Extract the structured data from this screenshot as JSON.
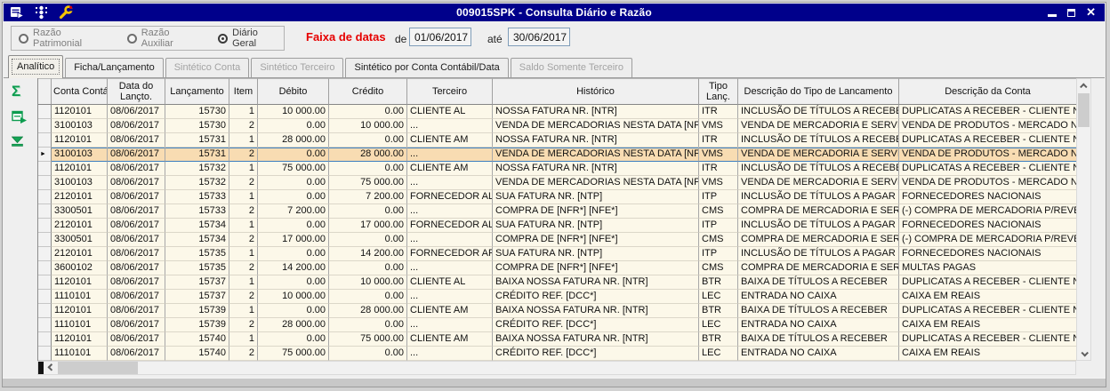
{
  "window": {
    "title": "009015SPK - Consulta Diário e Razão"
  },
  "filters": {
    "radios": [
      {
        "label": "Razão Patrimonial",
        "selected": false,
        "enabled": false
      },
      {
        "label": "Razão Auxiliar",
        "selected": false,
        "enabled": false
      },
      {
        "label": "Diário Geral",
        "selected": true,
        "enabled": true
      }
    ],
    "date_range_label": "Faixa de datas",
    "from_label": "de",
    "from_value": "01/06/2017",
    "to_label": "até",
    "to_value": "30/06/2017"
  },
  "tabs": [
    {
      "label": "Analítico",
      "active": true,
      "enabled": true
    },
    {
      "label": "Ficha/Lançamento",
      "active": false,
      "enabled": true
    },
    {
      "label": "Sintético Conta",
      "active": false,
      "enabled": false
    },
    {
      "label": "Sintético Terceiro",
      "active": false,
      "enabled": false
    },
    {
      "label": "Sintético por Conta Contábil/Data",
      "active": false,
      "enabled": true
    },
    {
      "label": "Saldo Somente Terceiro",
      "active": false,
      "enabled": false
    }
  ],
  "icons": {
    "titlebar": [
      "form-run-icon",
      "traffic-light-icon",
      "wrench-icon"
    ],
    "window_controls": [
      "minimize-icon",
      "maximize-icon",
      "close-icon"
    ],
    "side_toolbar": [
      "sum-icon",
      "export-form-icon",
      "goto-end-icon"
    ],
    "scrollbars": [
      "chevron-up-icon",
      "chevron-down-icon",
      "chevron-left-icon"
    ]
  },
  "glyphs": {
    "sum": "Σ",
    "close": "✕",
    "row_marker": "►"
  },
  "colors": {
    "titlebar": "#00008B",
    "grid_row_bg": "#FCF8E9",
    "selected_row_bg": "#F8DCB2",
    "selected_row_border": "#3C7EBE",
    "date_range_label": "#E60000",
    "toolbar_icon_green": "#0C9C4F"
  },
  "grid": {
    "columns": [
      {
        "key": "conta",
        "label": "Conta Contábil"
      },
      {
        "key": "data",
        "label": "Data do\nLançto."
      },
      {
        "key": "lancamento",
        "label": "Lançamento"
      },
      {
        "key": "item",
        "label": "Item"
      },
      {
        "key": "debito",
        "label": "Débito"
      },
      {
        "key": "credito",
        "label": "Crédito"
      },
      {
        "key": "terceiro",
        "label": "Terceiro"
      },
      {
        "key": "historico",
        "label": "Histórico"
      },
      {
        "key": "tipo",
        "label": "Tipo\nLanç."
      },
      {
        "key": "desc_tipo",
        "label": "Descrição do Tipo de Lancamento"
      },
      {
        "key": "desc_conta",
        "label": "Descrição da Conta"
      }
    ],
    "selected_row_index": 3,
    "rows": [
      [
        "1120101",
        "08/06/2017",
        "15730",
        "1",
        "10 000.00",
        "0.00",
        "CLIENTE AL",
        "NOSSA FATURA NR. [NTR]",
        "ITR",
        "INCLUSÃO DE TÍTULOS A RECEBER",
        "DUPLICATAS A RECEBER - CLIENTE NACIONAL"
      ],
      [
        "3100103",
        "08/06/2017",
        "15730",
        "2",
        "0.00",
        "10 000.00",
        "...",
        "VENDA DE MERCADORIAS NESTA DATA [NFS*]",
        "VMS",
        "VENDA DE MERCADORIA E SERVIÇOS",
        "VENDA DE PRODUTOS - MERCADO NACIONAL"
      ],
      [
        "1120101",
        "08/06/2017",
        "15731",
        "1",
        "28 000.00",
        "0.00",
        "CLIENTE AM",
        "NOSSA FATURA NR. [NTR]",
        "ITR",
        "INCLUSÃO DE TÍTULOS A RECEBER",
        "DUPLICATAS A RECEBER - CLIENTE NACIONAL"
      ],
      [
        "3100103",
        "08/06/2017",
        "15731",
        "2",
        "0.00",
        "28 000.00",
        "...",
        "VENDA DE MERCADORIAS NESTA DATA [NFS*]",
        "VMS",
        "VENDA DE MERCADORIA E SERVIÇOS",
        "VENDA DE PRODUTOS - MERCADO NACIONAL"
      ],
      [
        "1120101",
        "08/06/2017",
        "15732",
        "1",
        "75 000.00",
        "0.00",
        "CLIENTE AM",
        "NOSSA FATURA NR. [NTR]",
        "ITR",
        "INCLUSÃO DE TÍTULOS A RECEBER",
        "DUPLICATAS A RECEBER - CLIENTE NACIONAL"
      ],
      [
        "3100103",
        "08/06/2017",
        "15732",
        "2",
        "0.00",
        "75 000.00",
        "...",
        "VENDA DE MERCADORIAS NESTA DATA [NFS*]",
        "VMS",
        "VENDA DE MERCADORIA E SERVIÇOS",
        "VENDA DE PRODUTOS - MERCADO NACIONAL"
      ],
      [
        "2120101",
        "08/06/2017",
        "15733",
        "1",
        "0.00",
        "7 200.00",
        "FORNECEDOR AL",
        "SUA FATURA NR. [NTP]",
        "ITP",
        "INCLUSÃO DE TÍTULOS A PAGAR",
        "FORNECEDORES NACIONAIS"
      ],
      [
        "3300501",
        "08/06/2017",
        "15733",
        "2",
        "7 200.00",
        "0.00",
        "...",
        "COMPRA DE [NFR*] [NFE*]",
        "CMS",
        "COMPRA DE MERCADORIA E SERVIÇOS",
        "(-) COMPRA DE MERCADORIA P/REVENDA"
      ],
      [
        "2120101",
        "08/06/2017",
        "15734",
        "1",
        "0.00",
        "17 000.00",
        "FORNECEDOR AL",
        "SUA FATURA NR. [NTP]",
        "ITP",
        "INCLUSÃO DE TÍTULOS A PAGAR",
        "FORNECEDORES NACIONAIS"
      ],
      [
        "3300501",
        "08/06/2017",
        "15734",
        "2",
        "17 000.00",
        "0.00",
        "...",
        "COMPRA DE [NFR*] [NFE*]",
        "CMS",
        "COMPRA DE MERCADORIA E SERVIÇOS",
        "(-) COMPRA DE MERCADORIA P/REVENDA"
      ],
      [
        "2120101",
        "08/06/2017",
        "15735",
        "1",
        "0.00",
        "14 200.00",
        "FORNECEDOR AP",
        "SUA FATURA NR. [NTP]",
        "ITP",
        "INCLUSÃO DE TÍTULOS A PAGAR",
        "FORNECEDORES NACIONAIS"
      ],
      [
        "3600102",
        "08/06/2017",
        "15735",
        "2",
        "14 200.00",
        "0.00",
        "...",
        "COMPRA DE [NFR*] [NFE*]",
        "CMS",
        "COMPRA DE MERCADORIA E SERVIÇOS",
        "MULTAS PAGAS"
      ],
      [
        "1120101",
        "08/06/2017",
        "15737",
        "1",
        "0.00",
        "10 000.00",
        "CLIENTE AL",
        "BAIXA NOSSA FATURA NR. [NTR]",
        "BTR",
        "BAIXA DE TÍTULOS A RECEBER",
        "DUPLICATAS A RECEBER - CLIENTE NACIONAL"
      ],
      [
        "1110101",
        "08/06/2017",
        "15737",
        "2",
        "10 000.00",
        "0.00",
        "...",
        "CRÉDITO REF. [DCC*]",
        "LEC",
        "ENTRADA NO CAIXA",
        "CAIXA EM REAIS"
      ],
      [
        "1120101",
        "08/06/2017",
        "15739",
        "1",
        "0.00",
        "28 000.00",
        "CLIENTE AM",
        "BAIXA NOSSA FATURA NR. [NTR]",
        "BTR",
        "BAIXA DE TÍTULOS A RECEBER",
        "DUPLICATAS A RECEBER - CLIENTE NACIONAL"
      ],
      [
        "1110101",
        "08/06/2017",
        "15739",
        "2",
        "28 000.00",
        "0.00",
        "...",
        "CRÉDITO REF. [DCC*]",
        "LEC",
        "ENTRADA NO CAIXA",
        "CAIXA EM REAIS"
      ],
      [
        "1120101",
        "08/06/2017",
        "15740",
        "1",
        "0.00",
        "75 000.00",
        "CLIENTE AM",
        "BAIXA NOSSA FATURA NR. [NTR]",
        "BTR",
        "BAIXA DE TÍTULOS A RECEBER",
        "DUPLICATAS A RECEBER - CLIENTE NACIONAL"
      ],
      [
        "1110101",
        "08/06/2017",
        "15740",
        "2",
        "75 000.00",
        "0.00",
        "...",
        "CRÉDITO REF. [DCC*]",
        "LEC",
        "ENTRADA NO CAIXA",
        "CAIXA EM REAIS"
      ]
    ]
  }
}
